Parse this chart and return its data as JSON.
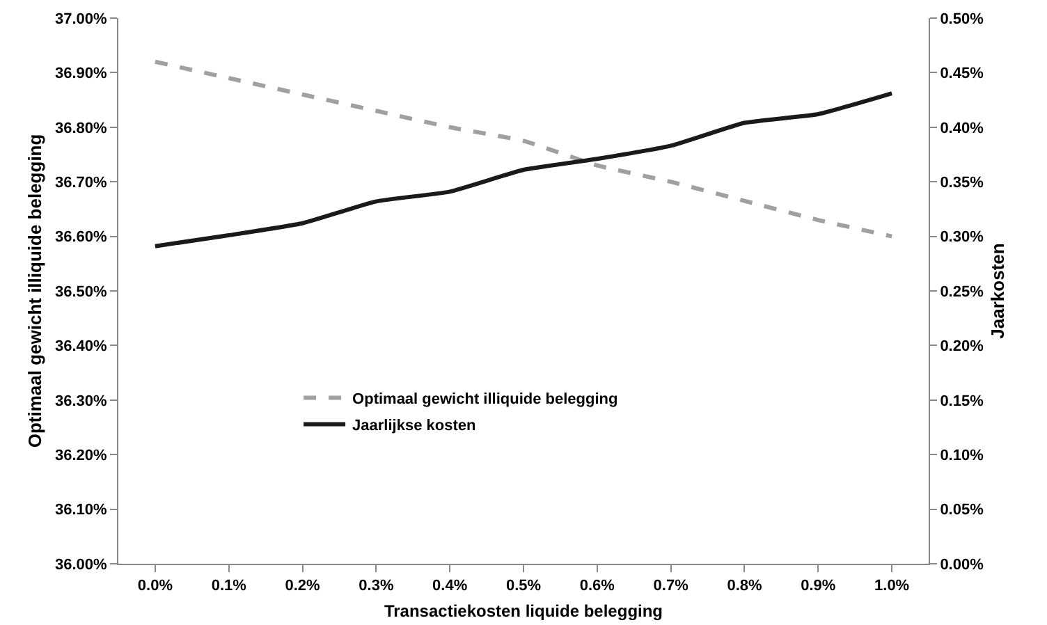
{
  "chart_data": {
    "type": "line",
    "xlabel": "Transactiekosten liquide belegging",
    "ylabel": "Optimaal gewicht illiquide belegging",
    "y2label": "Jaarkosten",
    "categories": [
      "0.0%",
      "0.1%",
      "0.2%",
      "0.3%",
      "0.4%",
      "0.5%",
      "0.6%",
      "0.7%",
      "0.8%",
      "0.9%",
      "1.0%"
    ],
    "series": [
      {
        "name": "Optimaal gewicht illiquide belegging",
        "color": "#a0a0a0",
        "line_style": "dashed",
        "values": [
          36.92,
          36.89,
          36.86,
          36.83,
          36.8,
          36.775,
          36.73,
          36.7,
          36.665,
          36.63,
          36.6
        ]
      },
      {
        "name": "Jaarlijkse kosten",
        "color": "#1a1a1a",
        "line_style": "solid",
        "axis": "y2",
        "values": [
          0.291,
          0.301,
          0.312,
          0.332,
          0.341,
          0.361,
          0.371,
          0.383,
          0.404,
          0.412,
          0.431
        ]
      }
    ],
    "ylim": [
      36.0,
      37.0
    ],
    "yticks": [
      {
        "value": 36.0,
        "label": "36.00%"
      },
      {
        "value": 36.1,
        "label": "36.10%"
      },
      {
        "value": 36.2,
        "label": "36.20%"
      },
      {
        "value": 36.3,
        "label": "36.30%"
      },
      {
        "value": 36.4,
        "label": "36.40%"
      },
      {
        "value": 36.5,
        "label": "36.50%"
      },
      {
        "value": 36.6,
        "label": "36.60%"
      },
      {
        "value": 36.7,
        "label": "36.70%"
      },
      {
        "value": 36.8,
        "label": "36.80%"
      },
      {
        "value": 36.9,
        "label": "36.90%"
      },
      {
        "value": 37.0,
        "label": "37.00%"
      }
    ],
    "y2lim": [
      0,
      0.5
    ],
    "y2ticks": [
      {
        "value": 0,
        "label": "0.00%"
      },
      {
        "value": 0.05,
        "label": "0.05%"
      },
      {
        "value": 0.1,
        "label": "0.10%"
      },
      {
        "value": 0.15,
        "label": "0.15%"
      },
      {
        "value": 0.2,
        "label": "0.20%"
      },
      {
        "value": 0.25,
        "label": "0.25%"
      },
      {
        "value": 0.3,
        "label": "0.30%"
      },
      {
        "value": 0.35,
        "label": "0.35%"
      },
      {
        "value": 0.4,
        "label": "0.40%"
      },
      {
        "value": 0.45,
        "label": "0.45%"
      },
      {
        "value": 0.5,
        "label": "0.50%"
      }
    ],
    "grid": false,
    "legend": "center",
    "marker": "none"
  }
}
